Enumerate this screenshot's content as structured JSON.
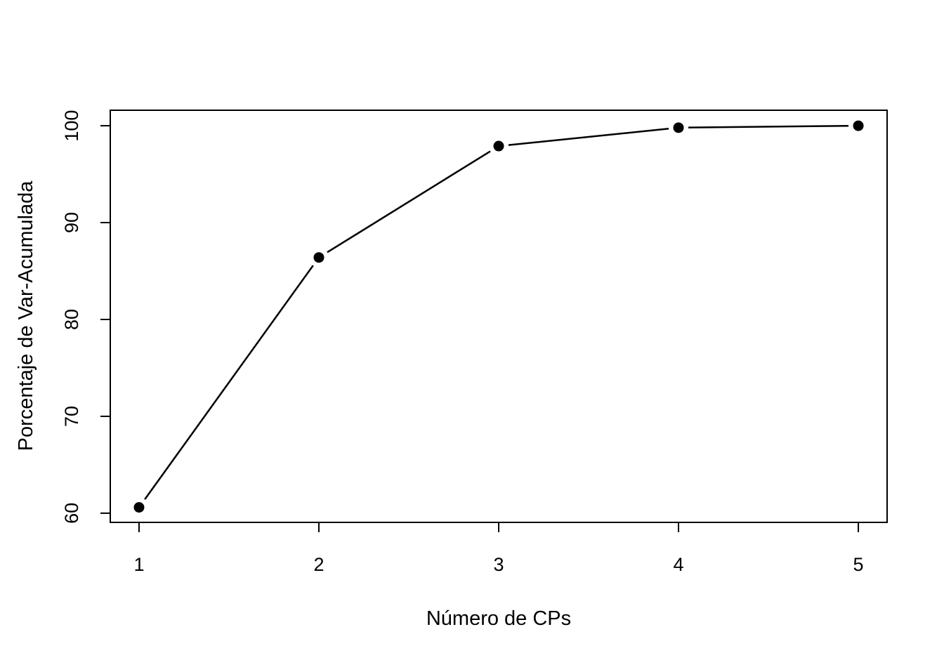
{
  "chart_data": {
    "type": "line",
    "title": "",
    "xlabel": "Número de CPs",
    "ylabel": "Porcentaje de Var-Acumulada",
    "x": [
      1,
      2,
      3,
      4,
      5
    ],
    "series": [
      {
        "values": [
          60.6,
          86.4,
          97.9,
          99.8,
          100.0
        ]
      }
    ],
    "xticks": [
      "1",
      "2",
      "3",
      "4",
      "5"
    ],
    "yticks": [
      "60",
      "70",
      "80",
      "90",
      "100"
    ],
    "xlim": [
      0.84,
      5.16
    ],
    "ylim": [
      59.05,
      101.6
    ],
    "grid": false,
    "marker": "filled-circle",
    "line_style": "gapped",
    "colors": {
      "line": "#000000",
      "marker": "#000000"
    }
  }
}
